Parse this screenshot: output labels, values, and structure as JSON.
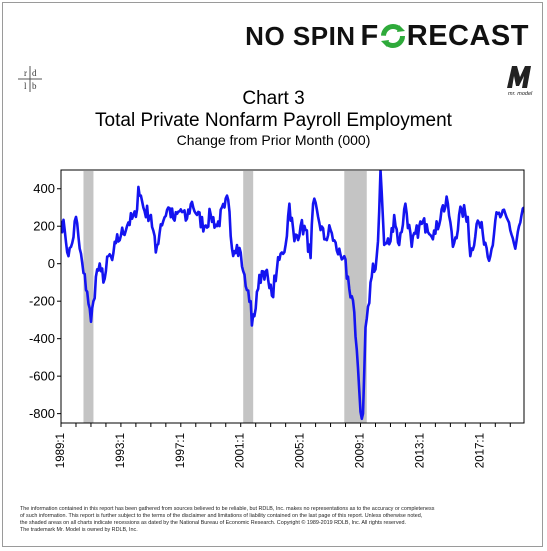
{
  "brand": {
    "part1": "NO SPIN",
    "part2_prefix": "F",
    "part2_suffix": "RECAST",
    "logo_icon": "recycle-arrows-icon"
  },
  "logos": {
    "left": "rdlb",
    "right": "Mr. Model"
  },
  "chart_data": {
    "type": "line",
    "title": "Chart 3",
    "subtitle": "Total Private Nonfarm Payroll Employment",
    "subtitle2": "Change from Prior Month (000)",
    "xlabel": "",
    "ylabel": "",
    "x_start": "1989-01",
    "x_end": "2019-12",
    "ylim": [
      -850,
      500
    ],
    "yticks": [
      400,
      200,
      0,
      -200,
      -400,
      -600,
      -800
    ],
    "xticks": [
      "1989:1",
      "1993:1",
      "1997:1",
      "2001:1",
      "2005:1",
      "2009:1",
      "2013:1",
      "2017:1"
    ],
    "recessions": [
      {
        "start": "1990:7",
        "end": "1991:3"
      },
      {
        "start": "2001:3",
        "end": "2001:11"
      },
      {
        "start": "2007:12",
        "end": "2009:6"
      }
    ],
    "grid": false,
    "series": [
      {
        "name": "",
        "color": "#1414f0",
        "anchors": [
          [
            "1989:1",
            230
          ],
          [
            "1989:4",
            180
          ],
          [
            "1989:7",
            40
          ],
          [
            "1989:10",
            110
          ],
          [
            "1990:1",
            250
          ],
          [
            "1990:4",
            80
          ],
          [
            "1990:7",
            -50
          ],
          [
            "1990:10",
            -150
          ],
          [
            "1991:1",
            -310
          ],
          [
            "1991:3",
            -200
          ],
          [
            "1991:6",
            -30
          ],
          [
            "1991:9",
            -40
          ],
          [
            "1991:12",
            -80
          ],
          [
            "1992:3",
            40
          ],
          [
            "1992:6",
            20
          ],
          [
            "1992:9",
            110
          ],
          [
            "1993:1",
            150
          ],
          [
            "1993:7",
            220
          ],
          [
            "1994:1",
            250
          ],
          [
            "1994:3",
            410
          ],
          [
            "1994:8",
            280
          ],
          [
            "1995:1",
            260
          ],
          [
            "1995:5",
            60
          ],
          [
            "1995:9",
            210
          ],
          [
            "1996:3",
            300
          ],
          [
            "1996:8",
            230
          ],
          [
            "1997:1",
            290
          ],
          [
            "1997:5",
            230
          ],
          [
            "1997:10",
            330
          ],
          [
            "1998:2",
            260
          ],
          [
            "1998:8",
            200
          ],
          [
            "1999:1",
            260
          ],
          [
            "1999:6",
            200
          ],
          [
            "1999:12",
            300
          ],
          [
            "2000:3",
            340
          ],
          [
            "2000:6",
            80
          ],
          [
            "2000:10",
            100
          ],
          [
            "2001:1",
            60
          ],
          [
            "2001:3",
            -40
          ],
          [
            "2001:5",
            -120
          ],
          [
            "2001:9",
            -200
          ],
          [
            "2001:10",
            -330
          ],
          [
            "2001:12",
            -280
          ],
          [
            "2002:2",
            -150
          ],
          [
            "2002:6",
            -40
          ],
          [
            "2002:9",
            -40
          ],
          [
            "2002:12",
            -130
          ],
          [
            "2003:2",
            -170
          ],
          [
            "2003:6",
            -30
          ],
          [
            "2003:10",
            60
          ],
          [
            "2004:1",
            100
          ],
          [
            "2004:4",
            320
          ],
          [
            "2004:8",
            120
          ],
          [
            "2005:1",
            200
          ],
          [
            "2005:5",
            180
          ],
          [
            "2005:9",
            30
          ],
          [
            "2005:11",
            320
          ],
          [
            "2006:3",
            250
          ],
          [
            "2006:8",
            130
          ],
          [
            "2007:1",
            180
          ],
          [
            "2007:6",
            70
          ],
          [
            "2007:12",
            40
          ],
          [
            "2008:2",
            -80
          ],
          [
            "2008:5",
            -180
          ],
          [
            "2008:8",
            -260
          ],
          [
            "2008:10",
            -460
          ],
          [
            "2008:12",
            -680
          ],
          [
            "2009:1",
            -790
          ],
          [
            "2009:3",
            -800
          ],
          [
            "2009:5",
            -340
          ],
          [
            "2009:8",
            -210
          ],
          [
            "2009:11",
            0
          ],
          [
            "2010:1",
            -30
          ],
          [
            "2010:3",
            120
          ],
          [
            "2010:5",
            500
          ],
          [
            "2010:8",
            100
          ],
          [
            "2011:1",
            120
          ],
          [
            "2011:4",
            260
          ],
          [
            "2011:8",
            100
          ],
          [
            "2012:1",
            320
          ],
          [
            "2012:6",
            90
          ],
          [
            "2012:12",
            200
          ],
          [
            "2013:6",
            210
          ],
          [
            "2014:1",
            160
          ],
          [
            "2014:6",
            290
          ],
          [
            "2014:11",
            320
          ],
          [
            "2015:3",
            90
          ],
          [
            "2015:10",
            290
          ],
          [
            "2016:3",
            250
          ],
          [
            "2016:5",
            40
          ],
          [
            "2016:11",
            230
          ],
          [
            "2017:3",
            160
          ],
          [
            "2017:9",
            40
          ],
          [
            "2018:1",
            230
          ],
          [
            "2018:6",
            260
          ],
          [
            "2018:12",
            220
          ],
          [
            "2019:5",
            80
          ],
          [
            "2019:9",
            220
          ],
          [
            "2019:12",
            300
          ]
        ]
      }
    ]
  },
  "disclaimer": {
    "line1": "The information contained in this report has been gathered from sources believed to be reliable, but RDLB, Inc. makes no representations as to the accuracy or completeness",
    "line2": "of such information. This report is further subject to the terms of the disclaimer and limitations of liability contained on the last page of this report. Unless otherwise noted,",
    "line3": "the shaded areas on all charts indicate recessions as dated by the National Bureau of Economic Research. Copyright © 1989-2019 RDLB, Inc. All rights reserved.",
    "line4": "The trademark Mr. Model is owned by RDLB, Inc."
  }
}
